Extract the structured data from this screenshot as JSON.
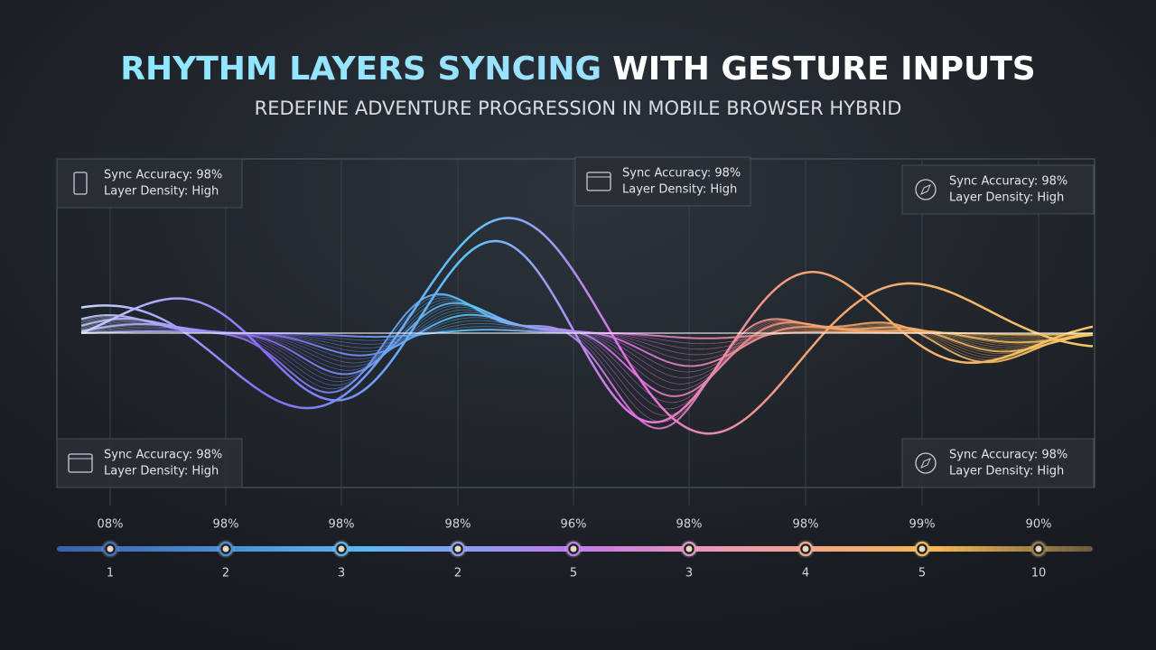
{
  "header": {
    "title_highlight": "RHYTHM LAYERS SYNCING",
    "title_rest": "WITH GESTURE INPUTS",
    "subtitle": "REDEFINE ADVENTURE PROGRESSION IN MOBILE BROWSER HYBRID"
  },
  "cards": [
    {
      "line1": "Sync Accuracy: 98%",
      "line2": "Layer Density: High"
    },
    {
      "line1": "Sync Accuracy: 98%",
      "line2": "Layer Density: High"
    },
    {
      "line1": "Sync Accuracy: 98%",
      "line2": "Layer Density: High"
    },
    {
      "line1": "Sync Accuracy: 98%",
      "line2": "Layer Density: High"
    },
    {
      "line1": "Sync Accuracy: 98%",
      "line2": "Layer Density: High"
    }
  ],
  "timeline": [
    {
      "top": "08%",
      "bottom": "1"
    },
    {
      "top": "98%",
      "bottom": "2"
    },
    {
      "top": "98%",
      "bottom": "3"
    },
    {
      "top": "98%",
      "bottom": "2"
    },
    {
      "top": "96%",
      "bottom": "5"
    },
    {
      "top": "98%",
      "bottom": "3"
    },
    {
      "top": "98%",
      "bottom": "4"
    },
    {
      "top": "99%",
      "bottom": "5"
    },
    {
      "top": "90%",
      "bottom": "10"
    }
  ]
}
